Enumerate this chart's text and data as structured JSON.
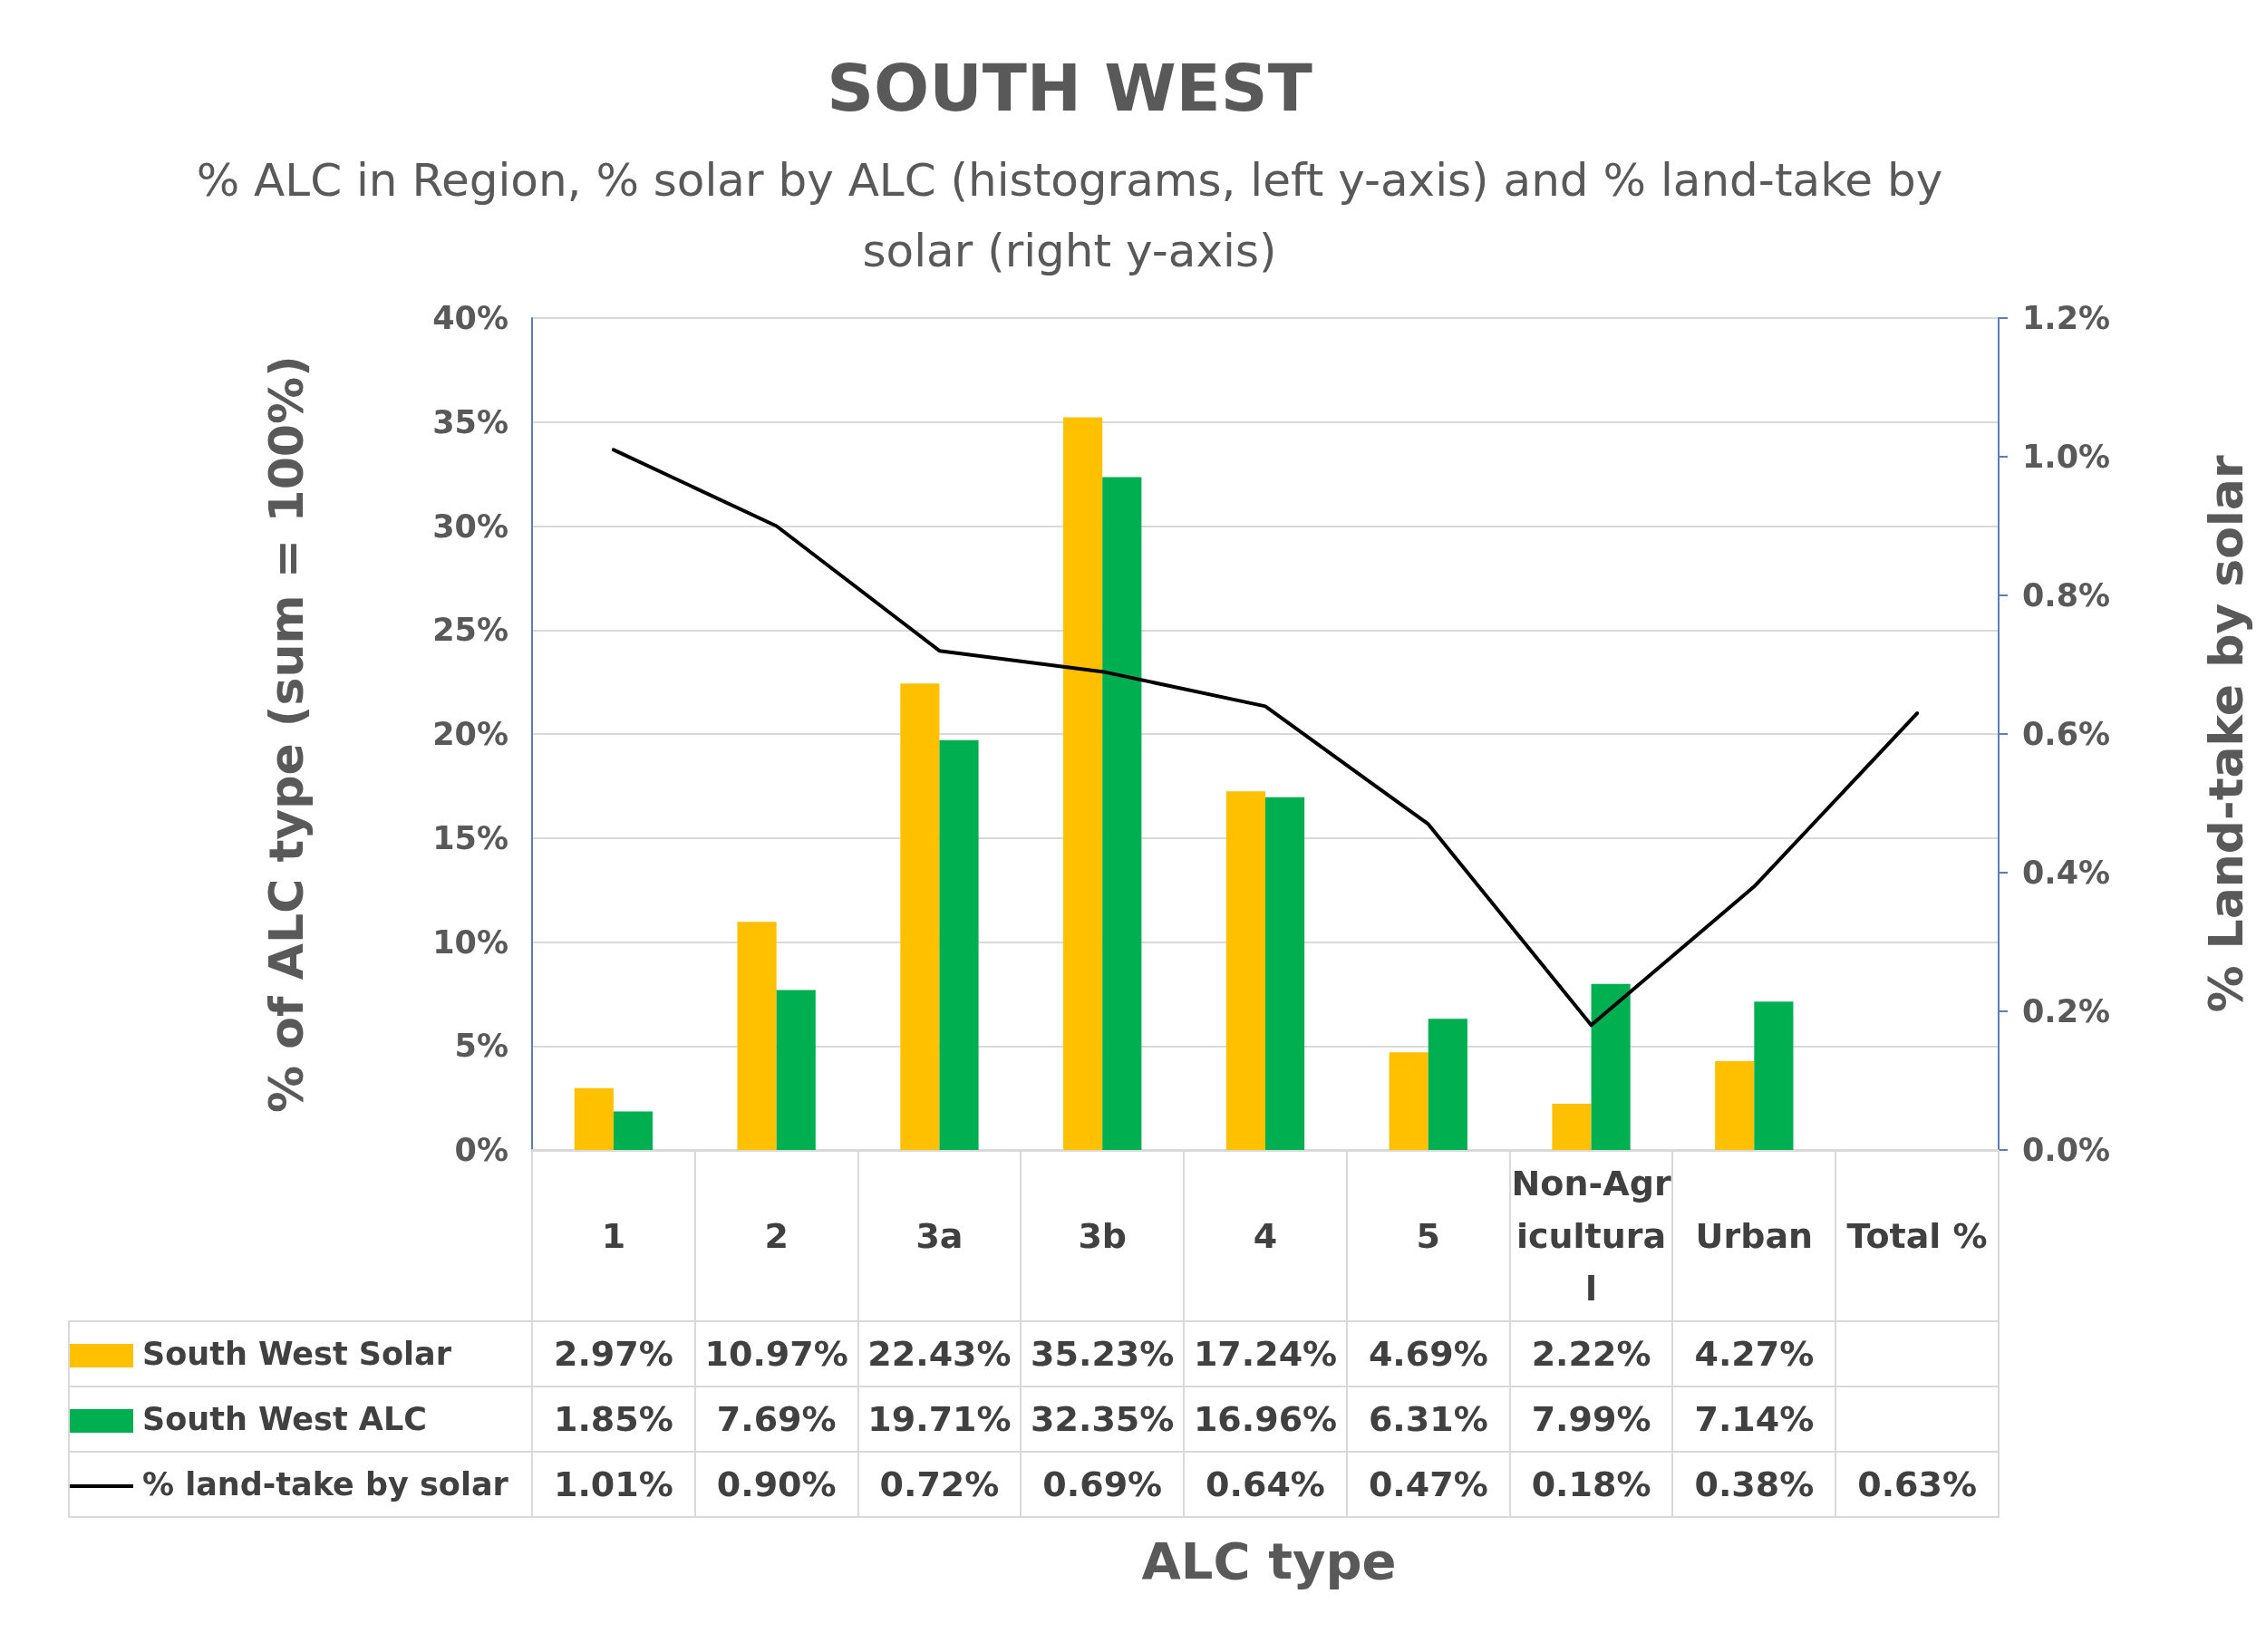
{
  "chart_data": {
    "type": "bar",
    "title": "SOUTH WEST",
    "subtitle": "% ALC in Region, % solar by ALC (histograms, left y-axis) and % land-take by solar (right y-axis)",
    "xlabel": "ALC type",
    "ylabel": "% of ALC type (sum = 100%)",
    "y2label": "% Land-take by solar",
    "categories": [
      "1",
      "2",
      "3a",
      "3b",
      "4",
      "5",
      "Non-Agricultural",
      "Urban",
      "Total %"
    ],
    "series": [
      {
        "name": "South West Solar",
        "color": "#ffc000",
        "values": [
          2.97,
          10.97,
          22.43,
          35.23,
          17.24,
          4.69,
          2.22,
          4.27,
          null
        ],
        "value_labels": [
          "2.97%",
          "10.97%",
          "22.43%",
          "35.23%",
          "17.24%",
          "4.69%",
          "2.22%",
          "4.27%",
          null
        ]
      },
      {
        "name": "South West ALC",
        "color": "#00b050",
        "values": [
          1.85,
          7.69,
          19.71,
          32.35,
          16.96,
          6.31,
          7.99,
          7.14,
          null
        ],
        "value_labels": [
          "1.85%",
          "7.69%",
          "19.71%",
          "32.35%",
          "16.96%",
          "6.31%",
          "7.99%",
          "7.14%",
          null
        ]
      },
      {
        "name": "% land-take by solar",
        "type": "line",
        "axis": "y2",
        "color": "#000000",
        "marker": "none",
        "line_style": "solid",
        "values": [
          1.01,
          0.9,
          0.72,
          0.69,
          0.64,
          0.47,
          0.18,
          0.38,
          0.63
        ],
        "value_labels": [
          "1.01%",
          "0.90%",
          "0.72%",
          "0.69%",
          "0.64%",
          "0.47%",
          "0.18%",
          "0.38%",
          "0.63%"
        ]
      }
    ],
    "ylim": [
      0,
      40
    ],
    "yticks": [
      {
        "value": 0,
        "label": "0%"
      },
      {
        "value": 5,
        "label": "5%"
      },
      {
        "value": 10,
        "label": "10%"
      },
      {
        "value": 15,
        "label": "15%"
      },
      {
        "value": 20,
        "label": "20%"
      },
      {
        "value": 25,
        "label": "25%"
      },
      {
        "value": 30,
        "label": "30%"
      },
      {
        "value": 35,
        "label": "35%"
      },
      {
        "value": 40,
        "label": "40%"
      }
    ],
    "y2lim": [
      0,
      1.2
    ],
    "y2ticks": [
      {
        "value": 0,
        "label": "0.0%"
      },
      {
        "value": 0.2,
        "label": "0.2%"
      },
      {
        "value": 0.4,
        "label": "0.4%"
      },
      {
        "value": 0.6,
        "label": "0.6%"
      },
      {
        "value": 0.8,
        "label": "0.8%"
      },
      {
        "value": 1.0,
        "label": "1.0%"
      },
      {
        "value": 1.2,
        "label": "1.2%"
      }
    ],
    "grid": "y",
    "legend": "bottom"
  }
}
